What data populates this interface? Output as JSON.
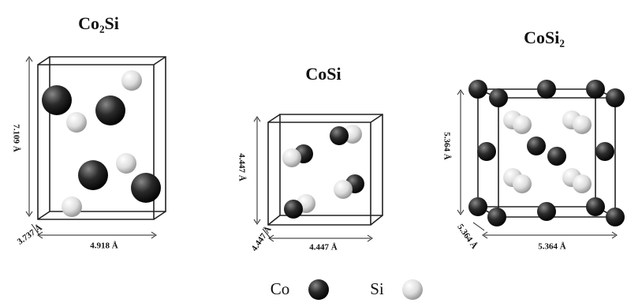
{
  "structures": [
    {
      "title": "Co₂Si",
      "height_label": "7.109 Å",
      "depth_label": "3.737 Å",
      "width_label": "4.918 Å"
    },
    {
      "title": "CoSi",
      "height_label": "4.447 Å",
      "depth_label": "4.447 Å",
      "width_label": "4.447 Å"
    },
    {
      "title": "CoSi₂",
      "height_label": "5.364 Å",
      "depth_label": "5.364 Å",
      "width_label": "5.364 Å"
    }
  ],
  "legend": {
    "items": [
      "Co",
      "Si"
    ]
  }
}
